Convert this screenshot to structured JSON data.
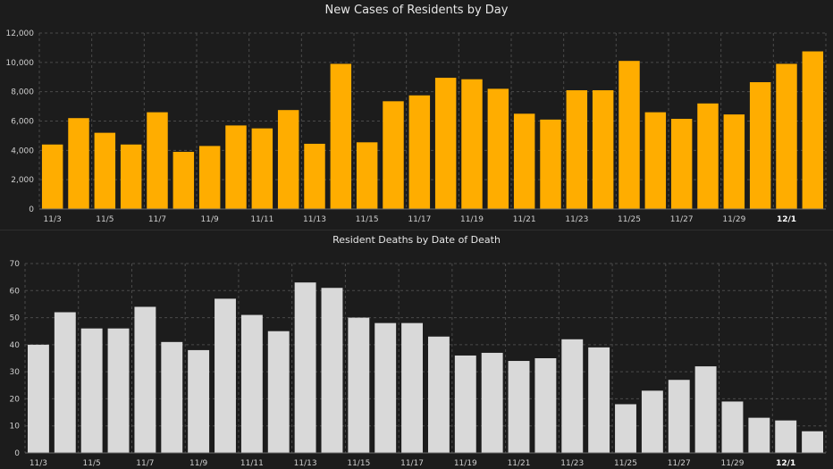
{
  "chart_data": [
    {
      "type": "bar",
      "title": "New Cases of Residents by Day",
      "color": "#ffad00",
      "ylim": [
        0,
        12000
      ],
      "yticks": [
        0,
        2000,
        4000,
        6000,
        8000,
        10000,
        12000
      ],
      "ytick_labels": [
        "0",
        "2,000",
        "4,000",
        "6,000",
        "8,000",
        "10,000",
        "12,000"
      ],
      "categories": [
        "11/3",
        "11/4",
        "11/5",
        "11/6",
        "11/7",
        "11/8",
        "11/9",
        "11/10",
        "11/11",
        "11/12",
        "11/13",
        "11/14",
        "11/15",
        "11/16",
        "11/17",
        "11/18",
        "11/19",
        "11/20",
        "11/21",
        "11/22",
        "11/23",
        "11/24",
        "11/25",
        "11/26",
        "11/27",
        "11/28",
        "11/29",
        "11/30",
        "12/1",
        "12/2"
      ],
      "values": [
        4400,
        6200,
        5200,
        4400,
        6600,
        3900,
        4300,
        5700,
        5500,
        6750,
        4450,
        9900,
        4550,
        7350,
        7750,
        8950,
        8850,
        8200,
        6500,
        6100,
        8100,
        8100,
        10100,
        6600,
        6150,
        7200,
        6450,
        8650,
        9900,
        10750
      ],
      "xtick_labels": [
        "11/3",
        "11/5",
        "11/7",
        "11/9",
        "11/11",
        "11/13",
        "11/15",
        "11/17",
        "11/19",
        "11/21",
        "11/23",
        "11/25",
        "11/27",
        "11/29",
        "12/1"
      ],
      "bold_tick": "12/1",
      "grid": true
    },
    {
      "type": "bar",
      "title": "Resident Deaths by Date of Death",
      "color": "#d9d9d9",
      "ylim": [
        0,
        70
      ],
      "yticks": [
        0,
        10,
        20,
        30,
        40,
        50,
        60,
        70
      ],
      "ytick_labels": [
        "0",
        "10",
        "20",
        "30",
        "40",
        "50",
        "60",
        "70"
      ],
      "categories": [
        "11/3",
        "11/4",
        "11/5",
        "11/6",
        "11/7",
        "11/8",
        "11/9",
        "11/10",
        "11/11",
        "11/12",
        "11/13",
        "11/14",
        "11/15",
        "11/16",
        "11/17",
        "11/18",
        "11/19",
        "11/20",
        "11/21",
        "11/22",
        "11/23",
        "11/24",
        "11/25",
        "11/26",
        "11/27",
        "11/28",
        "11/29",
        "11/30",
        "12/1",
        "12/2"
      ],
      "values": [
        40,
        52,
        46,
        46,
        54,
        41,
        38,
        57,
        51,
        45,
        63,
        61,
        50,
        48,
        48,
        43,
        36,
        37,
        34,
        35,
        42,
        39,
        18,
        23,
        27,
        32,
        19,
        13,
        12,
        8
      ],
      "xtick_labels": [
        "11/3",
        "11/5",
        "11/7",
        "11/9",
        "11/11",
        "11/13",
        "11/15",
        "11/17",
        "11/19",
        "11/21",
        "11/23",
        "11/25",
        "11/27",
        "11/29",
        "12/1"
      ],
      "bold_tick": "12/1",
      "grid": true
    }
  ]
}
